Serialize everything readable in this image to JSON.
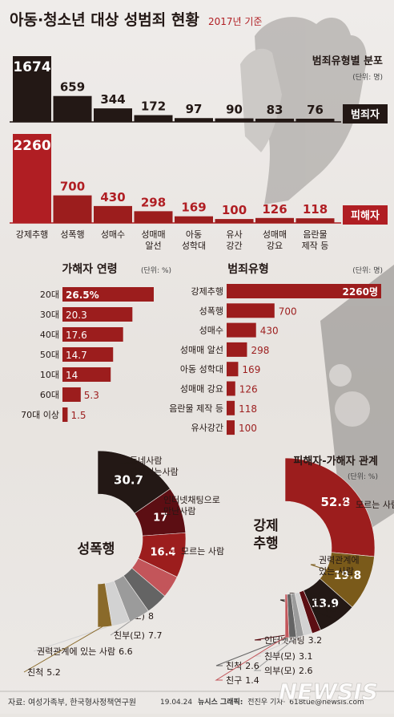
{
  "header": {
    "title": "아동·청소년 대상 성범죄 현황",
    "subtitle": "2017년 기준"
  },
  "chart_data": [
    {
      "type": "bar",
      "title": "범죄유형별 분포",
      "unit_note": "(단위: 명)",
      "categories": [
        "강제추행",
        "성폭행",
        "성매수",
        "성매매 알선",
        "아동 성학대",
        "유사 강간",
        "성매매 강요",
        "음란물 제작 등"
      ],
      "category_lines": [
        [
          "강제추행"
        ],
        [
          "성폭행"
        ],
        [
          "성매수"
        ],
        [
          "성매매",
          "알선"
        ],
        [
          "아동",
          "성학대"
        ],
        [
          "유사",
          "강간"
        ],
        [
          "성매매",
          "강요"
        ],
        [
          "음란물",
          "제작 등"
        ]
      ],
      "series": [
        {
          "name": "범죄자",
          "values": [
            1674,
            659,
            344,
            172,
            97,
            90,
            83,
            76
          ],
          "color": "#231815"
        },
        {
          "name": "피해자",
          "values": [
            2260,
            700,
            430,
            298,
            169,
            100,
            126,
            118
          ],
          "color": "#9c1d1d"
        }
      ],
      "colors": {
        "first_offender": "#231815",
        "first_victim": "#b01e23"
      }
    },
    {
      "type": "bar",
      "orientation": "horizontal",
      "title": "가해자 연령",
      "unit_note": "(단위: %)",
      "categories": [
        "20대",
        "30대",
        "40대",
        "50대",
        "10대",
        "60대",
        "70대 이상"
      ],
      "values": [
        26.5,
        20.3,
        17.6,
        14.7,
        14,
        5.3,
        1.5
      ],
      "value_labels": [
        "26.5%",
        "20.3",
        "17.6",
        "14.7",
        "14",
        "5.3",
        "1.5"
      ],
      "xlim": [
        0,
        26.5
      ],
      "color": "#9c1d1d"
    },
    {
      "type": "bar",
      "orientation": "horizontal",
      "title": "범죄유형",
      "unit_note": "(단위: 명)",
      "categories": [
        "강제추행",
        "성폭행",
        "성매수",
        "성매매 알선",
        "아동 성학대",
        "성매매 강요",
        "음란물 제작 등",
        "유사강간"
      ],
      "values": [
        2260,
        700,
        430,
        298,
        169,
        126,
        118,
        100
      ],
      "value_labels": [
        "2260명",
        "700",
        "430",
        "298",
        "169",
        "126",
        "118",
        "100"
      ],
      "xlim": [
        0,
        2260
      ],
      "color": "#9c1d1d"
    },
    {
      "type": "pie",
      "style": "half-donut",
      "title": "성폭행",
      "values": [
        30.7,
        17,
        16.4,
        8.2,
        8,
        7.7,
        6.6,
        5.2
      ],
      "labels": [
        "동네사람 안면있는사람",
        "인터넷채팅으로 만난사람",
        "모르는 사람",
        "친구",
        "의부(모)",
        "친부(모)",
        "권력관계에 있는 사람",
        "친척"
      ],
      "value_labels": [
        "30.7",
        "17",
        "16.4",
        "8.2",
        "8",
        "7.7",
        "6.6",
        "5.2"
      ],
      "colors": [
        "#231815",
        "#5c0e13",
        "#9c1d1d",
        "#c3555a",
        "#646464",
        "#9b9b9b",
        "#d2d2d2",
        "#8a6a2a"
      ]
    },
    {
      "type": "pie",
      "style": "half-donut",
      "title": "강제추행",
      "legend_title": "피해자-가해자 관계",
      "unit_note": "(단위: %)",
      "values": [
        52.8,
        19.8,
        13.9,
        3.2,
        3.1,
        2.6,
        2.6,
        1.4
      ],
      "labels": [
        "모르는 사람",
        "권력관계에 있는 사람",
        "동네사람 안면있는사람",
        "인터넷채팅",
        "친부(모)",
        "의부(모)",
        "친척",
        "친구"
      ],
      "value_labels": [
        "52.8",
        "19.8",
        "13.9",
        "3.2",
        "3.1",
        "2.6",
        "2.6",
        "1.4"
      ],
      "colors": [
        "#9c1d1d",
        "#7a5a1a",
        "#231815",
        "#5c0e13",
        "#d2d2d2",
        "#9b9b9b",
        "#646464",
        "#c3555a"
      ]
    }
  ],
  "legend": {
    "offender": "범죄자",
    "victim": "피해자"
  },
  "footer": {
    "source": "자료: 여성가족부, 한국형사정책연구원",
    "credit_date": "19.04.24",
    "credit_agency": "뉴시스 그래픽:",
    "credit_author": "전진우 기자·",
    "credit_email": "618tue@newsis.com",
    "watermark": "NEWSIS"
  }
}
